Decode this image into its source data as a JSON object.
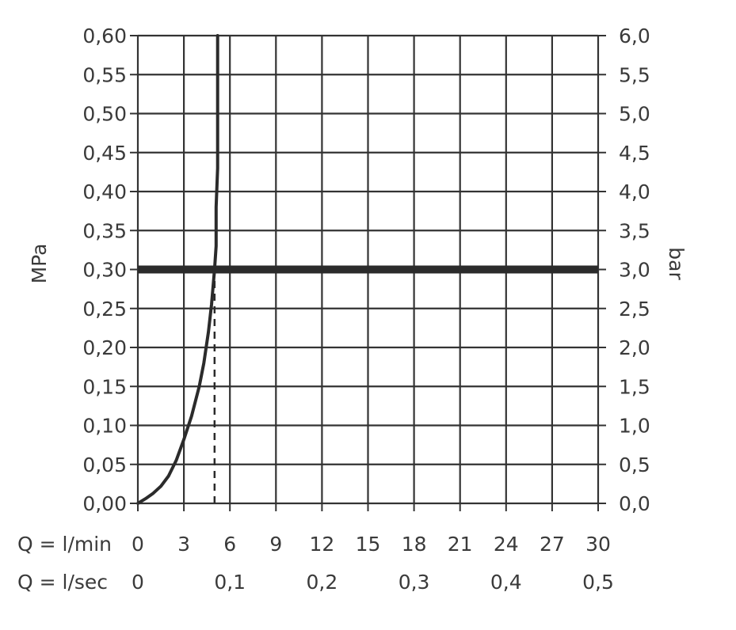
{
  "chart_data": {
    "type": "line",
    "y_left": {
      "label": "MPa",
      "range": [
        0,
        0.6
      ],
      "ticks": [
        {
          "value": 0.0,
          "label": "0,00"
        },
        {
          "value": 0.05,
          "label": "0,05"
        },
        {
          "value": 0.1,
          "label": "0,10"
        },
        {
          "value": 0.15,
          "label": "0,15"
        },
        {
          "value": 0.2,
          "label": "0,20"
        },
        {
          "value": 0.25,
          "label": "0,25"
        },
        {
          "value": 0.3,
          "label": "0,30"
        },
        {
          "value": 0.35,
          "label": "0,35"
        },
        {
          "value": 0.4,
          "label": "0,40"
        },
        {
          "value": 0.45,
          "label": "0,45"
        },
        {
          "value": 0.5,
          "label": "0,50"
        },
        {
          "value": 0.55,
          "label": "0,55"
        },
        {
          "value": 0.6,
          "label": "0,60"
        }
      ]
    },
    "y_right": {
      "label": "bar",
      "range": [
        0,
        6
      ],
      "ticks": [
        {
          "value": 0.0,
          "label": "0,0"
        },
        {
          "value": 0.5,
          "label": "0,5"
        },
        {
          "value": 1.0,
          "label": "1,0"
        },
        {
          "value": 1.5,
          "label": "1,5"
        },
        {
          "value": 2.0,
          "label": "2,0"
        },
        {
          "value": 2.5,
          "label": "2,5"
        },
        {
          "value": 3.0,
          "label": "3,0"
        },
        {
          "value": 3.5,
          "label": "3,5"
        },
        {
          "value": 4.0,
          "label": "4,0"
        },
        {
          "value": 4.5,
          "label": "4,5"
        },
        {
          "value": 5.0,
          "label": "5,0"
        },
        {
          "value": 5.5,
          "label": "5,5"
        },
        {
          "value": 6.0,
          "label": "6,0"
        }
      ]
    },
    "x_lmin": {
      "label": "Q = l/min",
      "range": [
        0,
        30
      ],
      "ticks": [
        {
          "value": 0,
          "label": "0"
        },
        {
          "value": 3,
          "label": "3"
        },
        {
          "value": 6,
          "label": "6"
        },
        {
          "value": 9,
          "label": "9"
        },
        {
          "value": 12,
          "label": "12"
        },
        {
          "value": 15,
          "label": "15"
        },
        {
          "value": 18,
          "label": "18"
        },
        {
          "value": 21,
          "label": "21"
        },
        {
          "value": 24,
          "label": "24"
        },
        {
          "value": 27,
          "label": "27"
        },
        {
          "value": 30,
          "label": "30"
        }
      ]
    },
    "x_lsec": {
      "label": "Q = l/sec",
      "range": [
        0,
        0.5
      ],
      "ticks": [
        {
          "value": 0,
          "label": "0"
        },
        {
          "value": 0.1,
          "label": "0,1"
        },
        {
          "value": 0.2,
          "label": "0,2"
        },
        {
          "value": 0.3,
          "label": "0,3"
        },
        {
          "value": 0.4,
          "label": "0,4"
        },
        {
          "value": 0.5,
          "label": "0,5"
        }
      ]
    },
    "grid": true,
    "series": [
      {
        "x": [
          0,
          0.5,
          1,
          1.5,
          2,
          2.5,
          3,
          3.5,
          4,
          4.3,
          4.6,
          4.8,
          5.0,
          5.1,
          5.1,
          5.2,
          5.2,
          5.2
        ],
        "y": [
          0,
          0.006,
          0.013,
          0.022,
          0.035,
          0.055,
          0.082,
          0.112,
          0.15,
          0.18,
          0.22,
          0.255,
          0.3,
          0.33,
          0.38,
          0.43,
          0.5,
          0.6
        ]
      }
    ],
    "reference_lines": [
      {
        "orientation": "horizontal",
        "y": 0.3,
        "style": "bold"
      },
      {
        "orientation": "vertical",
        "x": 5.0,
        "style": "dashed",
        "from_y": 0,
        "to_y": 0.3
      }
    ],
    "colors": {
      "line": "#2b2b2b",
      "grid": "#333333",
      "text": "#3a3a3a"
    }
  }
}
